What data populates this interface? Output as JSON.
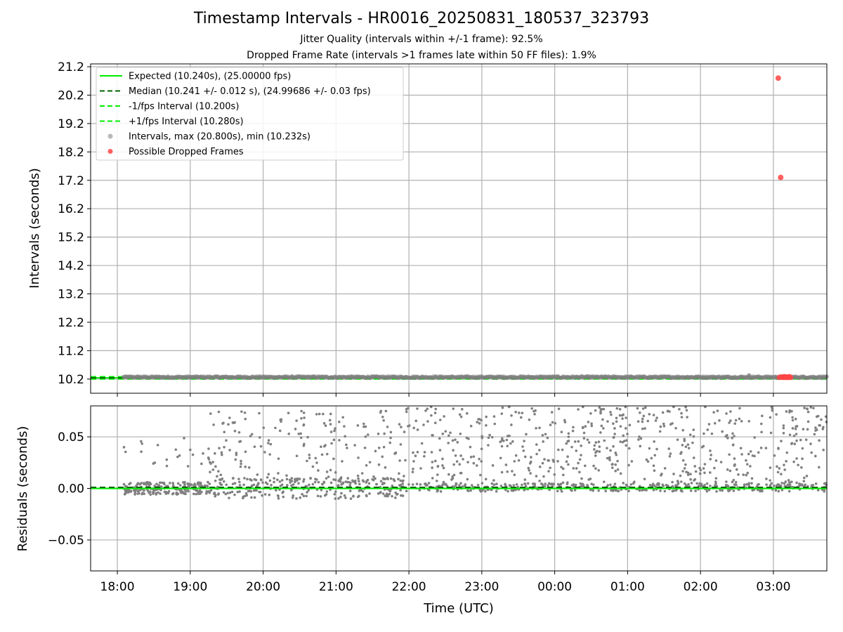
{
  "figure": {
    "title": "Timestamp Intervals - HR0016_20250831_180537_323793",
    "subtitle_jitter": "Jitter Quality (intervals within +/-1 frame): 92.5%",
    "subtitle_dropped": "Dropped Frame Rate (intervals >1 frames late within 50 FF files): 1.9%"
  },
  "colors": {
    "expected": "#00ee00",
    "median": "#006400",
    "fps_bounds": "#00ee00",
    "intervals": "#808080",
    "dropped": "#ff4444",
    "grid": "#b0b0b0"
  },
  "chart_data": [
    {
      "type": "scatter",
      "panel": "intervals",
      "xlabel": "",
      "ylabel": "Intervals (seconds)",
      "xlim": [
        "17:38",
        "03:44"
      ],
      "ylim": [
        9.7,
        21.3
      ],
      "y_ticks": [
        "10.2",
        "11.2",
        "12.2",
        "13.2",
        "14.2",
        "15.2",
        "16.2",
        "17.2",
        "18.2",
        "19.2",
        "20.2",
        "21.2"
      ],
      "grid": true,
      "legend_position": "top-left",
      "legend": [
        {
          "label": "Expected (10.240s), (25.00000 fps)",
          "style": "solid-line",
          "color": "#00ee00"
        },
        {
          "label": "Median (10.241 +/- 0.012 s), (24.99686 +/- 0.03 fps)",
          "style": "dashed-line",
          "color": "#006400"
        },
        {
          "label": "-1/fps Interval (10.200s)",
          "style": "dashed-line",
          "color": "#00ee00"
        },
        {
          "label": "+1/fps Interval (10.280s)",
          "style": "dashed-line",
          "color": "#00ee00"
        },
        {
          "label": "Intervals, max (20.800s), min (10.232s)",
          "style": "dot",
          "color": "#808080"
        },
        {
          "label": "Possible Dropped Frames",
          "style": "dot",
          "color": "#ff4444"
        }
      ],
      "reference_lines": {
        "expected": 10.24,
        "median": 10.241,
        "minus_1_fps": 10.2,
        "plus_1_fps": 10.28
      },
      "series": [
        {
          "name": "Intervals, max (20.800s), min (10.232s)",
          "y_min": 10.232,
          "y_max": 20.8,
          "x_start": "18:05",
          "x_end": "03:44"
        },
        {
          "name": "Possible Dropped Frames",
          "points": [
            {
              "x": "03:04",
              "y": 20.8
            },
            {
              "x": "03:06",
              "y": 17.3
            },
            {
              "x": "03:05",
              "y": 10.26
            },
            {
              "x": "03:07",
              "y": 10.27
            },
            {
              "x": "03:08",
              "y": 10.26
            },
            {
              "x": "03:09",
              "y": 10.28
            },
            {
              "x": "03:10",
              "y": 10.26
            },
            {
              "x": "03:11",
              "y": 10.27
            },
            {
              "x": "03:12",
              "y": 10.26
            },
            {
              "x": "03:13",
              "y": 10.28
            },
            {
              "x": "03:14",
              "y": 10.26
            }
          ]
        }
      ]
    },
    {
      "type": "scatter",
      "panel": "residuals",
      "xlabel": "Time (UTC)",
      "ylabel": "Residuals (seconds)",
      "xlim": [
        "17:38",
        "03:44"
      ],
      "ylim": [
        -0.08,
        0.08
      ],
      "x_ticks": [
        "18:00",
        "19:00",
        "20:00",
        "21:00",
        "22:00",
        "23:00",
        "00:00",
        "01:00",
        "02:00",
        "03:00"
      ],
      "y_ticks": [
        "−0.05",
        "0.00",
        "0.05"
      ],
      "grid": true,
      "reference_lines": {
        "zero": 0.0,
        "median": 0.001
      },
      "series": [
        {
          "name": "Residuals",
          "x_start": "18:05",
          "x_end": "03:44",
          "y_range": [
            -0.01,
            0.08
          ]
        }
      ]
    }
  ]
}
